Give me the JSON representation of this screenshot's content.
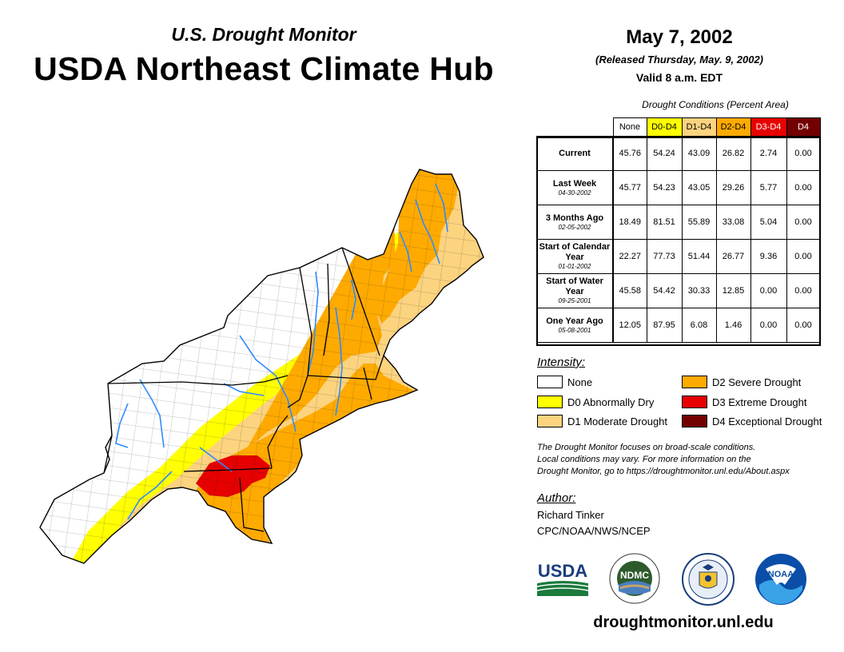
{
  "header": {
    "subtitle": "U.S. Drought Monitor",
    "title": "USDA Northeast Climate Hub",
    "date": "May 7, 2002",
    "released": "(Released Thursday, May. 9, 2002)",
    "valid": "Valid 8 a.m. EDT"
  },
  "table": {
    "caption": "Drought Conditions (Percent Area)",
    "columns": [
      "None",
      "D0-D4",
      "D1-D4",
      "D2-D4",
      "D3-D4",
      "D4"
    ],
    "column_colors": [
      "#ffffff",
      "#ffff00",
      "#fcd37f",
      "#ffaa00",
      "#e60000",
      "#730000"
    ],
    "rows": [
      {
        "label": "Current",
        "date": "",
        "values": [
          "45.76",
          "54.24",
          "43.09",
          "26.82",
          "2.74",
          "0.00"
        ]
      },
      {
        "label": "Last Week",
        "date": "04-30-2002",
        "values": [
          "45.77",
          "54.23",
          "43.05",
          "29.26",
          "5.77",
          "0.00"
        ]
      },
      {
        "label": "3 Months Ago",
        "date": "02-05-2002",
        "values": [
          "18.49",
          "81.51",
          "55.89",
          "33.08",
          "5.04",
          "0.00"
        ]
      },
      {
        "label": "Start of Calendar Year",
        "date": "01-01-2002",
        "values": [
          "22.27",
          "77.73",
          "51.44",
          "26.77",
          "9.36",
          "0.00"
        ]
      },
      {
        "label": "Start of Water Year",
        "date": "09-25-2001",
        "values": [
          "45.58",
          "54.42",
          "30.33",
          "12.85",
          "0.00",
          "0.00"
        ]
      },
      {
        "label": "One Year Ago",
        "date": "05-08-2001",
        "values": [
          "12.05",
          "87.95",
          "6.08",
          "1.46",
          "0.00",
          "0.00"
        ]
      }
    ]
  },
  "legend": {
    "title": "Intensity:",
    "items": [
      {
        "label": "None",
        "color": "#ffffff"
      },
      {
        "label": "D0 Abnormally Dry",
        "color": "#ffff00"
      },
      {
        "label": "D1 Moderate Drought",
        "color": "#fcd37f"
      },
      {
        "label": "D2 Severe Drought",
        "color": "#ffaa00"
      },
      {
        "label": "D3 Extreme Drought",
        "color": "#e60000"
      },
      {
        "label": "D4 Exceptional Drought",
        "color": "#730000"
      }
    ]
  },
  "note": {
    "line1": "The Drought Monitor focuses on broad-scale conditions.",
    "line2": "Local conditions may vary. For more information on the",
    "line3": "Drought Monitor, go to https://droughtmonitor.unl.edu/About.aspx"
  },
  "author": {
    "title": "Author:",
    "name": "Richard Tinker",
    "org": "CPC/NOAA/NWS/NCEP"
  },
  "logos": {
    "usda": "USDA",
    "ndmc": "NDMC",
    "noaa": "NOAA"
  },
  "footer": {
    "site": "droughtmonitor.unl.edu"
  },
  "map": {
    "colors": {
      "none": "#ffffff",
      "d0": "#ffff00",
      "d1": "#fcd37f",
      "d2": "#ffaa00",
      "d3": "#e60000",
      "water": "#2e8bff"
    }
  }
}
